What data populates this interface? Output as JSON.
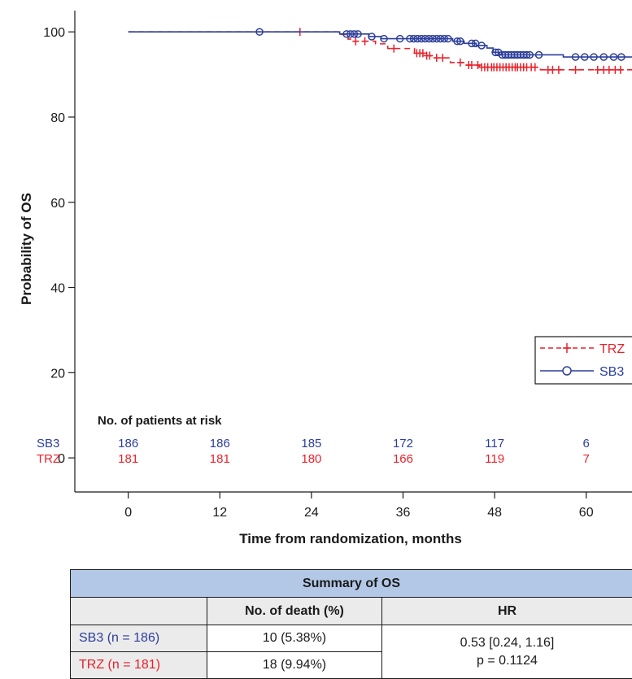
{
  "chart_data": {
    "type": "line",
    "subtype": "kaplan-meier",
    "xlabel": "Time from randomization, months",
    "ylabel": "Probability of OS",
    "xlim": [
      -7,
      66
    ],
    "ylim": [
      -8,
      105
    ],
    "x_ticks": [
      0,
      12,
      24,
      36,
      48,
      60
    ],
    "y_ticks": [
      0,
      20,
      40,
      60,
      80,
      100
    ],
    "grid": false,
    "legend_position": "right",
    "series": [
      {
        "name": "TRZ",
        "color": "#e8212a",
        "line_style": "dashed",
        "marker": "plus",
        "steps": [
          [
            0,
            100
          ],
          [
            27.5,
            99.4
          ],
          [
            28.8,
            98.3
          ],
          [
            29.5,
            97.8
          ],
          [
            32.4,
            97.2
          ],
          [
            34,
            96.1
          ],
          [
            37.5,
            95
          ],
          [
            38.8,
            94.4
          ],
          [
            40,
            93.9
          ],
          [
            42.2,
            92.8
          ],
          [
            44.3,
            92.2
          ],
          [
            46,
            91.7
          ],
          [
            47.5,
            91.7
          ],
          [
            53.6,
            91.7
          ],
          [
            54,
            91.1
          ],
          [
            58,
            91.1
          ],
          [
            59.5,
            91.1
          ],
          [
            66,
            91.1
          ]
        ],
        "censored": [
          22.5,
          29.8,
          31,
          34.8,
          37.8,
          38.2,
          38.6,
          39.1,
          39.5,
          40.4,
          41.2,
          43.5,
          44.6,
          45,
          45.8,
          46.3,
          46.7,
          47.1,
          47.6,
          47.9,
          48.3,
          48.7,
          49.1,
          49.5,
          49.9,
          50.3,
          50.7,
          51,
          51.4,
          51.8,
          52.2,
          52.8,
          53.3,
          55,
          55.6,
          56.4,
          58.6,
          61.5,
          62.3,
          63,
          63.8,
          64.5
        ]
      },
      {
        "name": "SB3",
        "color": "#2b3e9a",
        "line_style": "solid",
        "marker": "circle",
        "steps": [
          [
            0,
            100
          ],
          [
            27.7,
            99.5
          ],
          [
            31.5,
            98.9
          ],
          [
            33.1,
            98.4
          ],
          [
            36,
            98.4
          ],
          [
            42.5,
            97.8
          ],
          [
            44,
            97.3
          ],
          [
            45.6,
            96.8
          ],
          [
            47,
            96.2
          ],
          [
            47.8,
            95.2
          ],
          [
            48.6,
            94.6
          ],
          [
            52,
            94.6
          ],
          [
            57,
            94.1
          ],
          [
            66,
            94.1
          ]
        ],
        "censored": [
          17.2,
          28.6,
          29.1,
          29.6,
          30.1,
          31.9,
          33.5,
          35.6,
          36.9,
          37.4,
          37.9,
          38.4,
          38.9,
          39.4,
          39.9,
          40.4,
          40.9,
          41.4,
          41.9,
          43.1,
          43.5,
          45,
          45.5,
          46.3,
          48.1,
          48.5,
          49,
          49.4,
          49.8,
          50.2,
          50.6,
          51,
          51.4,
          51.8,
          52.2,
          52.6,
          53.8,
          58.6,
          59.8,
          61,
          62.3,
          63.6,
          64.6
        ]
      }
    ],
    "risk_table": {
      "title": "No. of patients at risk",
      "times": [
        0,
        12,
        24,
        36,
        48,
        60
      ],
      "rows": [
        {
          "label": "SB3",
          "color": "#2b3e9a",
          "values": [
            "186",
            "186",
            "185",
            "172",
            "117",
            "6"
          ]
        },
        {
          "label": "TRZ",
          "color": "#e8212a",
          "values": [
            "181",
            "181",
            "180",
            "166",
            "119",
            "7"
          ]
        }
      ]
    }
  },
  "summary_table": {
    "title": "Summary of OS",
    "col_death": "No. of death (%)",
    "col_hr": "HR",
    "row1_label": "SB3 (n = 186)",
    "row1_color": "#2b3e9a",
    "row1_death": "10 (5.38%)",
    "row2_label": "TRZ (n = 181)",
    "row2_color": "#e8212a",
    "row2_death": "18 (9.94%)",
    "hr_value": "0.53 [0.24, 1.16]",
    "p_value": "p = 0.1124"
  }
}
